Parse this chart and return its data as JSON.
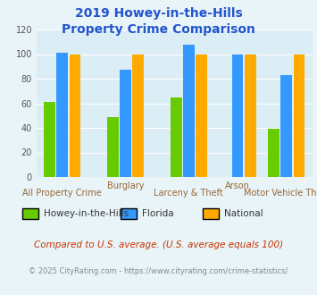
{
  "title_line1": "2019 Howey-in-the-Hills",
  "title_line2": "Property Crime Comparison",
  "groups": [
    {
      "name": "Howey-in-the-Hills",
      "color": "#66cc00",
      "values": [
        61,
        49,
        65,
        0,
        39
      ]
    },
    {
      "name": "Florida",
      "color": "#3399ff",
      "values": [
        101,
        87,
        108,
        100,
        83
      ]
    },
    {
      "name": "National",
      "color": "#ffaa00",
      "values": [
        100,
        100,
        100,
        100,
        100
      ]
    }
  ],
  "centers": [
    0.0,
    1.1,
    2.2,
    3.05,
    3.9
  ],
  "bar_width": 0.22,
  "xlim": [
    -0.45,
    4.35
  ],
  "ylim": [
    0,
    120
  ],
  "yticks": [
    0,
    20,
    40,
    60,
    80,
    100,
    120
  ],
  "bg_color": "#e8f4f8",
  "plot_bg": "#dceef5",
  "title_color": "#2255cc",
  "label_color": "#996633",
  "top_labels": [
    null,
    "Burglary",
    null,
    "Arson",
    null
  ],
  "bot_labels": [
    "All Property Crime",
    null,
    "Larceny & Theft",
    null,
    "Motor Vehicle Theft"
  ],
  "footnote1": "Compared to U.S. average. (U.S. average equals 100)",
  "footnote2": "© 2025 CityRating.com - https://www.cityrating.com/crime-statistics/",
  "footnote1_color": "#cc3300",
  "footnote2_color": "#888888"
}
